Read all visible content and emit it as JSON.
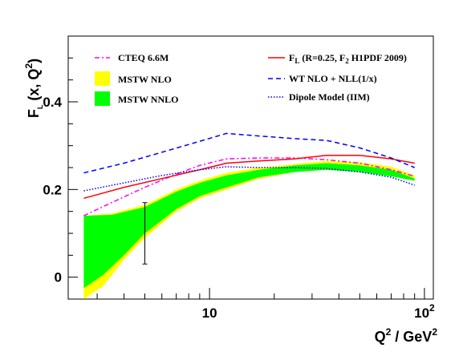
{
  "chart_data": {
    "type": "line",
    "xscale": "log",
    "xlim": [
      2.2,
      110
    ],
    "ylim": [
      -0.05,
      0.55
    ],
    "x_ticks": [
      {
        "value": 10,
        "base": "10",
        "exp": ""
      },
      {
        "value": 100,
        "base": "10",
        "exp": "2"
      }
    ],
    "y_ticks": [
      {
        "value": 0,
        "label": "0"
      },
      {
        "value": 0.2,
        "label": "0.2"
      },
      {
        "value": 0.4,
        "label": "0.4"
      }
    ],
    "xlabel": {
      "main": "Q",
      "sup": "2",
      "mid": " / GeV",
      "sup2": "2"
    },
    "ylabel": {
      "main": "F",
      "sub": "L",
      "mid": " (x, Q",
      "sup": "2",
      "end": ")"
    },
    "series": [
      {
        "name": "CTEQ 6.6M",
        "kind": "line",
        "color": "#ff00ff",
        "dash": "dashdot",
        "points": [
          [
            2.6,
            0.14
          ],
          [
            3.5,
            0.17
          ],
          [
            5,
            0.205
          ],
          [
            7,
            0.235
          ],
          [
            9,
            0.255
          ],
          [
            12,
            0.27
          ],
          [
            17,
            0.272
          ],
          [
            25,
            0.272
          ],
          [
            35,
            0.268
          ],
          [
            50,
            0.26
          ],
          [
            70,
            0.245
          ],
          [
            90,
            0.23
          ]
        ]
      },
      {
        "name": "MSTW NLO",
        "kind": "band",
        "color": "#ffff00",
        "lower": [
          [
            2.6,
            -0.05
          ],
          [
            3.2,
            -0.02
          ],
          [
            4,
            0.04
          ],
          [
            5,
            0.09
          ],
          [
            7,
            0.15
          ],
          [
            9,
            0.18
          ],
          [
            12,
            0.2
          ],
          [
            17,
            0.225
          ],
          [
            25,
            0.24
          ],
          [
            35,
            0.245
          ],
          [
            50,
            0.24
          ],
          [
            70,
            0.23
          ],
          [
            90,
            0.22
          ]
        ],
        "upper": [
          [
            2.6,
            0.14
          ],
          [
            3.5,
            0.145
          ],
          [
            5,
            0.165
          ],
          [
            7,
            0.2
          ],
          [
            9,
            0.22
          ],
          [
            12,
            0.238
          ],
          [
            17,
            0.25
          ],
          [
            25,
            0.258
          ],
          [
            35,
            0.265
          ],
          [
            50,
            0.262
          ],
          [
            70,
            0.252
          ],
          [
            90,
            0.232
          ]
        ]
      },
      {
        "name": "MSTW NNLO",
        "kind": "band",
        "color": "#00ff00",
        "lower": [
          [
            2.6,
            -0.025
          ],
          [
            3.2,
            0.005
          ],
          [
            4,
            0.05
          ],
          [
            5,
            0.1
          ],
          [
            7,
            0.155
          ],
          [
            9,
            0.185
          ],
          [
            12,
            0.205
          ],
          [
            17,
            0.228
          ],
          [
            25,
            0.24
          ],
          [
            35,
            0.245
          ],
          [
            50,
            0.24
          ],
          [
            70,
            0.23
          ],
          [
            90,
            0.22
          ]
        ],
        "upper": [
          [
            2.6,
            0.14
          ],
          [
            3.5,
            0.142
          ],
          [
            5,
            0.16
          ],
          [
            7,
            0.195
          ],
          [
            9,
            0.215
          ],
          [
            12,
            0.232
          ],
          [
            17,
            0.245
          ],
          [
            25,
            0.255
          ],
          [
            35,
            0.26
          ],
          [
            50,
            0.255
          ],
          [
            70,
            0.245
          ],
          [
            90,
            0.225
          ]
        ]
      },
      {
        "name": "F_L (R=0.25, F_2 H1PDF 2009)",
        "kind": "line",
        "color": "#ff0000",
        "dash": "solid",
        "points": [
          [
            2.6,
            0.18
          ],
          [
            4,
            0.205
          ],
          [
            6,
            0.225
          ],
          [
            9,
            0.245
          ],
          [
            12,
            0.26
          ],
          [
            17,
            0.265
          ],
          [
            25,
            0.27
          ],
          [
            35,
            0.278
          ],
          [
            50,
            0.278
          ],
          [
            70,
            0.27
          ],
          [
            90,
            0.26
          ]
        ]
      },
      {
        "name": "WT NLO + NLL(1/x)",
        "kind": "line",
        "color": "#0000ff",
        "dash": "dashed",
        "points": [
          [
            2.6,
            0.238
          ],
          [
            4,
            0.26
          ],
          [
            6,
            0.285
          ],
          [
            9,
            0.31
          ],
          [
            12,
            0.328
          ],
          [
            17,
            0.322
          ],
          [
            25,
            0.316
          ],
          [
            35,
            0.312
          ],
          [
            50,
            0.295
          ],
          [
            70,
            0.272
          ],
          [
            90,
            0.25
          ]
        ]
      },
      {
        "name": "Dipole Model (IIM)",
        "kind": "line",
        "color": "#0000ff",
        "dash": "dotted",
        "points": [
          [
            2.6,
            0.197
          ],
          [
            4,
            0.215
          ],
          [
            6,
            0.232
          ],
          [
            9,
            0.245
          ],
          [
            12,
            0.252
          ],
          [
            17,
            0.25
          ],
          [
            25,
            0.25
          ],
          [
            35,
            0.248
          ],
          [
            50,
            0.24
          ],
          [
            70,
            0.228
          ],
          [
            90,
            0.21
          ]
        ]
      }
    ],
    "errorbars": [
      {
        "x": 5,
        "y": 0.1,
        "low": 0.03,
        "high": 0.17
      }
    ],
    "legend": {
      "left": [
        {
          "label": "CTEQ 6.6M",
          "series": 0
        },
        {
          "label": "MSTW NLO",
          "series": 1
        },
        {
          "label": "MSTW NNLO",
          "series": 2
        }
      ],
      "right": [
        {
          "main": "F",
          "sub1": "L",
          "mid": " (R=0.25, F",
          "sub2": "2",
          "end": " H1PDF 2009)",
          "series": 3
        },
        {
          "label": "WT NLO + NLL(1/x)",
          "series": 4
        },
        {
          "label": "Dipole Model (IIM)",
          "series": 5
        }
      ]
    }
  }
}
